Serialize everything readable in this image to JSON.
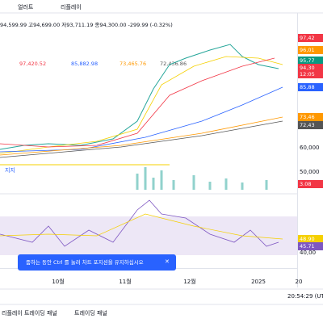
{
  "toolbar": {
    "alert": "얼러트",
    "replay": "리플레이"
  },
  "legend": {
    "ohlc": "94,599.99 고94,699.00 저93,711.19 종94,300.00 -299.99 (-0.32%)",
    "ma": [
      "97,420.52",
      "85,882.98",
      "73,465.76",
      "72,436.86"
    ],
    "support": "지지"
  },
  "price_scale": {
    "labels": [
      "97,42",
      "96,01",
      "95,77",
      "94,30",
      "12:05",
      "85,88",
      "73,46",
      "72,43",
      "60,000",
      "50,000",
      "3.08",
      "48.90",
      "45.71",
      "40,00"
    ]
  },
  "time_axis": [
    "10월",
    "11월",
    "12월",
    "2025",
    "20"
  ],
  "clock": "20:54:29 (UT",
  "toast": "줌하는 동안 Ctrl 를 눌러 차트 포지션을 유지하십시오",
  "tabs": [
    "리플레이 트레이딩 패널",
    "트레이딩 패널"
  ]
}
